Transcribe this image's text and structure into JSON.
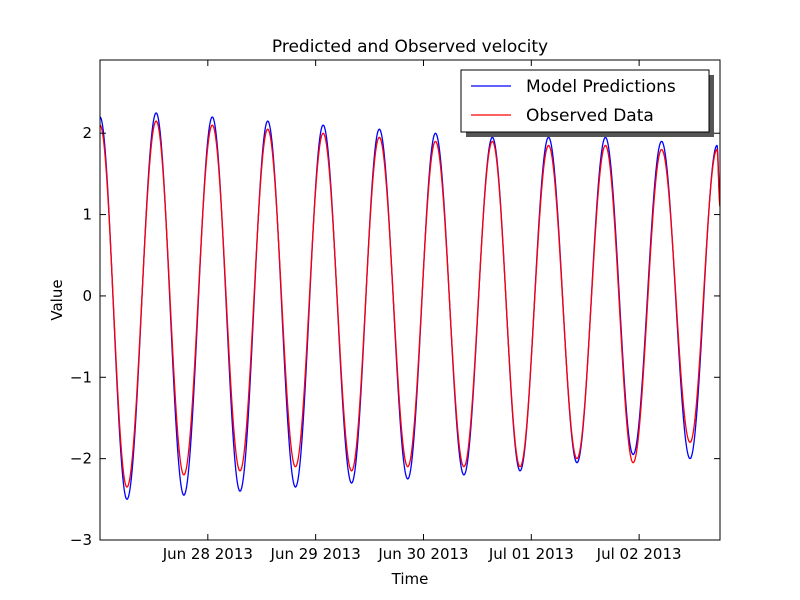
{
  "chart_data": {
    "type": "line",
    "title": "Predicted and Observed velocity",
    "xlabel": "Time",
    "ylabel": "Value",
    "x_ticks": [
      "Jun 28 2013",
      "Jun 29 2013",
      "Jun 30 2013",
      "Jul 01 2013",
      "Jul 02 2013"
    ],
    "xlim": [
      "2013-06-27 00:00",
      "2013-07-02 18:00"
    ],
    "ylim": [
      -3,
      2.9
    ],
    "y_ticks": [
      "−3",
      "−2",
      "−1",
      "0",
      "1",
      "2"
    ],
    "grid": false,
    "legend_position": "top-right",
    "series": [
      {
        "name": "Model Predictions",
        "color": "#0000ff",
        "x": [
          "2013-06-27 00:00",
          "2013-06-27 06:00",
          "2013-06-27 12:30",
          "2013-06-27 18:40",
          "2013-06-28 01:00",
          "2013-06-28 07:10",
          "2013-06-28 13:20",
          "2013-06-28 19:30",
          "2013-06-29 01:40",
          "2013-06-29 08:00",
          "2013-06-29 14:10",
          "2013-06-29 20:30",
          "2013-06-30 02:40",
          "2013-06-30 09:00",
          "2013-06-30 15:20",
          "2013-06-30 21:30",
          "2013-07-01 03:50",
          "2013-07-01 10:10",
          "2013-07-01 16:30",
          "2013-07-01 22:40",
          "2013-07-02 05:00",
          "2013-07-02 11:20",
          "2013-07-02 17:20",
          "2013-07-02 18:00"
        ],
        "y": [
          2.2,
          -2.5,
          2.25,
          -2.45,
          2.2,
          -2.4,
          2.15,
          -2.35,
          2.1,
          -2.3,
          2.05,
          -2.25,
          2.0,
          -2.2,
          1.95,
          -2.15,
          1.95,
          -2.05,
          1.95,
          -1.95,
          1.9,
          -2.0,
          1.85,
          1.15
        ]
      },
      {
        "name": "Observed Data",
        "color": "#ff0000",
        "x": [
          "2013-06-27 00:00",
          "2013-06-27 06:00",
          "2013-06-27 12:30",
          "2013-06-27 18:40",
          "2013-06-28 01:00",
          "2013-06-28 07:10",
          "2013-06-28 13:20",
          "2013-06-28 19:30",
          "2013-06-29 01:40",
          "2013-06-29 08:00",
          "2013-06-29 14:10",
          "2013-06-29 20:30",
          "2013-06-30 02:40",
          "2013-06-30 09:00",
          "2013-06-30 15:20",
          "2013-06-30 21:30",
          "2013-07-01 03:50",
          "2013-07-01 10:10",
          "2013-07-01 16:30",
          "2013-07-01 22:40",
          "2013-07-02 05:00",
          "2013-07-02 11:20",
          "2013-07-02 17:20",
          "2013-07-02 18:00"
        ],
        "y": [
          2.1,
          -2.35,
          2.15,
          -2.2,
          2.1,
          -2.15,
          2.05,
          -2.1,
          2.0,
          -2.15,
          1.95,
          -2.1,
          1.9,
          -2.1,
          1.9,
          -2.1,
          1.85,
          -2.0,
          1.85,
          -2.05,
          1.8,
          -1.8,
          1.8,
          1.1
        ]
      }
    ]
  }
}
